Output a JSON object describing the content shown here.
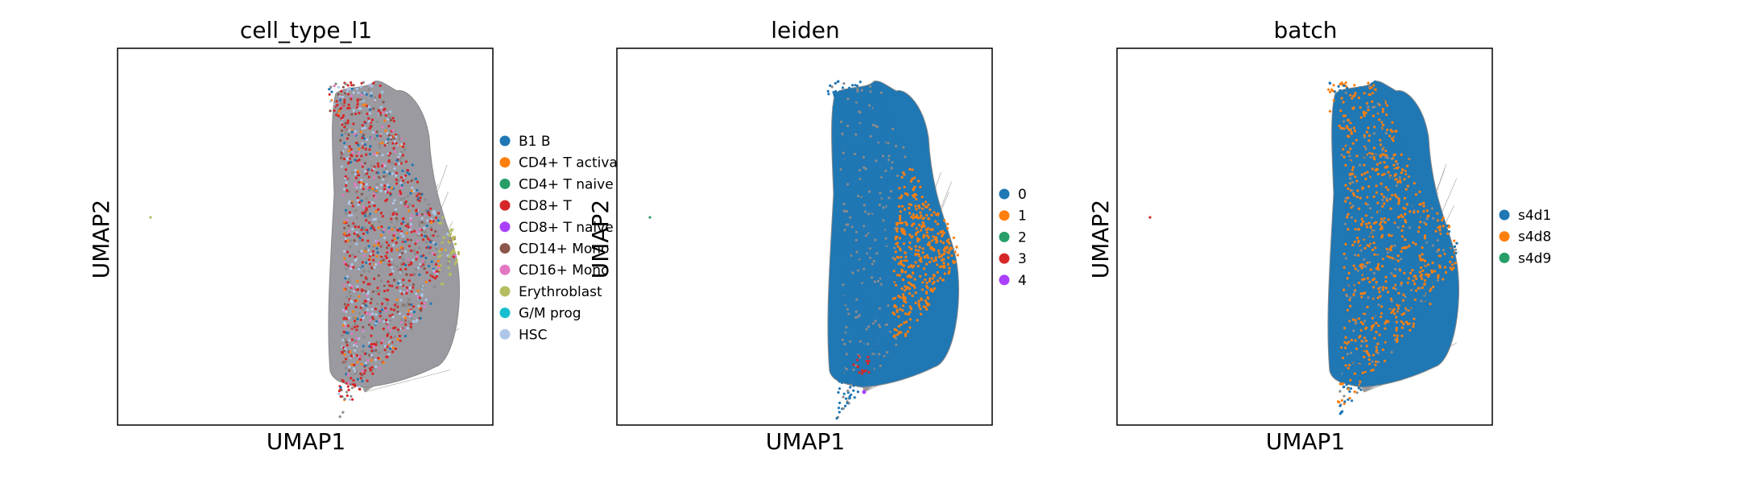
{
  "chart_data": [
    {
      "type": "scatter",
      "title": "cell_type_l1",
      "xlabel": "UMAP1",
      "ylabel": "UMAP2",
      "legend_placement": "right",
      "categories": [
        "B1 B",
        "CD4+ T activa",
        "CD4+ T naive",
        "CD8+ T",
        "CD8+ T naive",
        "CD14+ Mono",
        "CD16+ Mono",
        "Erythroblast",
        "G/M prog",
        "HSC"
      ],
      "colors": [
        "#1f77b4",
        "#ff7f0e",
        "#279e68",
        "#d62728",
        "#aa40fc",
        "#8c564b",
        "#e377c2",
        "#b5bd61",
        "#17becf",
        "#aec7e8"
      ]
    },
    {
      "type": "scatter",
      "title": "leiden",
      "xlabel": "UMAP1",
      "ylabel": "UMAP2",
      "legend_placement": "right",
      "categories": [
        "0",
        "1",
        "2",
        "3",
        "4"
      ],
      "colors": [
        "#1f77b4",
        "#ff7f0e",
        "#279e68",
        "#d62728",
        "#aa40fc"
      ]
    },
    {
      "type": "scatter",
      "title": "batch",
      "xlabel": "UMAP1",
      "ylabel": "UMAP2",
      "legend_placement": "right",
      "categories": [
        "s4d1",
        "s4d8",
        "s4d9"
      ],
      "colors": [
        "#1f77b4",
        "#ff7f0e",
        "#279e68"
      ]
    }
  ]
}
